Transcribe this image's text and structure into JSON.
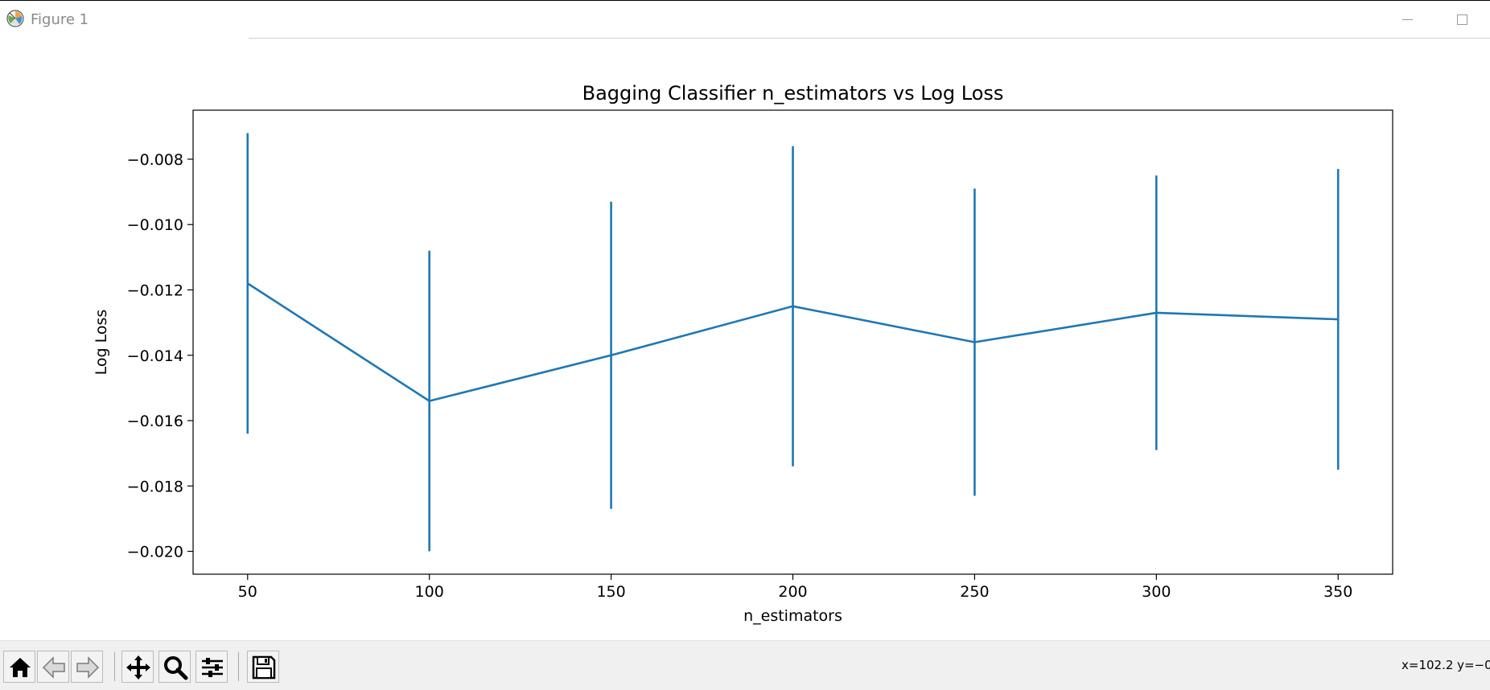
{
  "window": {
    "title": "Figure 1",
    "icons": [
      "matplotlib-logo-icon",
      "minimize-icon",
      "maximize-icon"
    ]
  },
  "toolbar": {
    "buttons": [
      {
        "name": "home-icon",
        "tooltip": "Home"
      },
      {
        "name": "back-arrow-icon",
        "tooltip": "Back"
      },
      {
        "name": "forward-arrow-icon",
        "tooltip": "Forward"
      },
      {
        "name": "pan-icon",
        "tooltip": "Pan"
      },
      {
        "name": "zoom-icon",
        "tooltip": "Zoom"
      },
      {
        "name": "configure-subplots-icon",
        "tooltip": "Subplots"
      },
      {
        "name": "save-icon",
        "tooltip": "Save"
      }
    ],
    "coordinates": "x=102.2 y=−0"
  },
  "colors": {
    "series": "#1f77b4",
    "toolbar_bg": "#f0f0f0"
  },
  "chart_data": {
    "type": "line",
    "title": "Bagging Classifier n_estimators vs Log Loss",
    "xlabel": "n_estimators",
    "ylabel": "Log Loss",
    "x": [
      50,
      100,
      150,
      200,
      250,
      300,
      350
    ],
    "y": [
      -0.0118,
      -0.0154,
      -0.014,
      -0.0125,
      -0.0136,
      -0.0127,
      -0.0129
    ],
    "yerr": [
      0.0046,
      0.0046,
      0.0047,
      0.0049,
      0.0047,
      0.0042,
      0.0046
    ],
    "xlim": [
      35,
      365
    ],
    "ylim": [
      -0.0207,
      -0.0065
    ],
    "xticks": [
      50,
      100,
      150,
      200,
      250,
      300,
      350
    ],
    "xticklabels": [
      "50",
      "100",
      "150",
      "200",
      "250",
      "300",
      "350"
    ],
    "yticks": [
      -0.008,
      -0.01,
      -0.012,
      -0.014,
      -0.016,
      -0.018,
      -0.02
    ],
    "yticklabels": [
      "−0.008",
      "−0.010",
      "−0.012",
      "−0.014",
      "−0.016",
      "−0.018",
      "−0.020"
    ],
    "grid": false,
    "legend": null
  }
}
